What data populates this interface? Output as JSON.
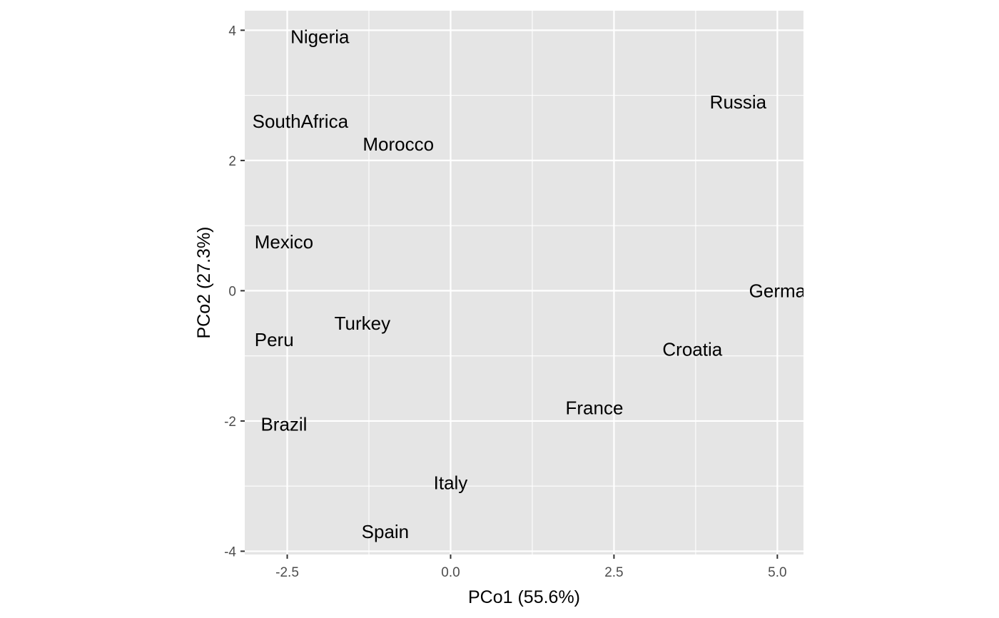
{
  "chart_data": {
    "type": "scatter",
    "xlabel": "PCo1 (55.6%)",
    "ylabel": "PCo2 (27.3%)",
    "xlim": [
      -3.15,
      5.4
    ],
    "ylim": [
      -4.05,
      4.3
    ],
    "x_ticks": [
      {
        "value": -2.5,
        "label": "-2.5"
      },
      {
        "value": 0,
        "label": "0.0"
      },
      {
        "value": 2.5,
        "label": "2.5"
      },
      {
        "value": 5,
        "label": "5.0"
      }
    ],
    "y_ticks": [
      {
        "value": 4,
        "label": "4"
      },
      {
        "value": 2,
        "label": "2"
      },
      {
        "value": 0,
        "label": "0"
      },
      {
        "value": -2,
        "label": "-2"
      },
      {
        "value": -4,
        "label": "-4"
      }
    ],
    "grid": true,
    "panel_color": "#e5e5e5",
    "grid_color": "#ffffff",
    "points": [
      {
        "label": "Nigeria",
        "x": -2.0,
        "y": 3.9
      },
      {
        "label": "Russia",
        "x": 4.4,
        "y": 2.9
      },
      {
        "label": "SouthAfrica",
        "x": -2.3,
        "y": 2.6
      },
      {
        "label": "Morocco",
        "x": -0.8,
        "y": 2.25
      },
      {
        "label": "Mexico",
        "x": -2.55,
        "y": 0.75
      },
      {
        "label": "Germany",
        "x": 5.15,
        "y": 0.0
      },
      {
        "label": "Turkey",
        "x": -1.35,
        "y": -0.5
      },
      {
        "label": "Peru",
        "x": -2.7,
        "y": -0.75
      },
      {
        "label": "Croatia",
        "x": 3.7,
        "y": -0.9
      },
      {
        "label": "France",
        "x": 2.2,
        "y": -1.8
      },
      {
        "label": "Brazil",
        "x": -2.55,
        "y": -2.05
      },
      {
        "label": "Italy",
        "x": 0.0,
        "y": -2.95
      },
      {
        "label": "Spain",
        "x": -1.0,
        "y": -3.7
      }
    ]
  }
}
